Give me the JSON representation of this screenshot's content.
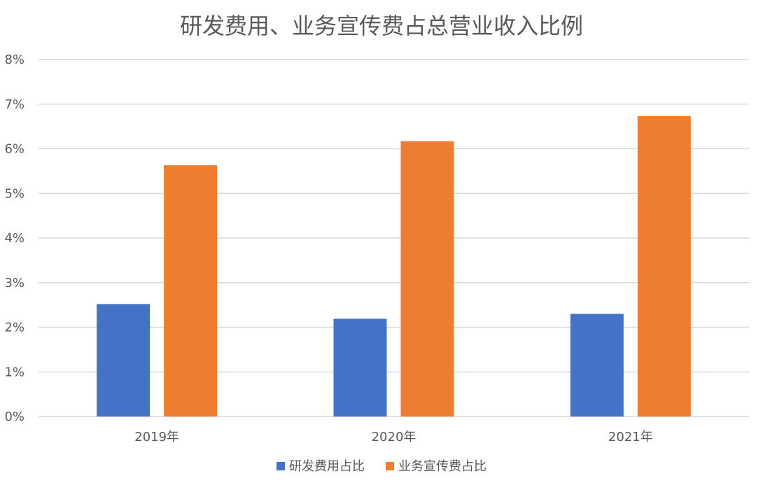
{
  "chart_data": {
    "type": "bar",
    "title": "研发费用、业务宣传费占总营业收入比例",
    "categories": [
      "2019年",
      "2020年",
      "2021年"
    ],
    "series": [
      {
        "name": "研发费用占比",
        "values": [
          2.52,
          2.19,
          2.3
        ],
        "color": "#4472c4"
      },
      {
        "name": "业务宣传费占比",
        "values": [
          5.63,
          6.17,
          6.73
        ],
        "color": "#ed7d31"
      }
    ],
    "ylim": [
      0,
      8
    ],
    "y_ticks": [
      "0%",
      "1%",
      "2%",
      "3%",
      "4%",
      "5%",
      "6%",
      "7%",
      "8%"
    ],
    "y_unit": "%",
    "grid": true,
    "legend_position": "bottom"
  }
}
